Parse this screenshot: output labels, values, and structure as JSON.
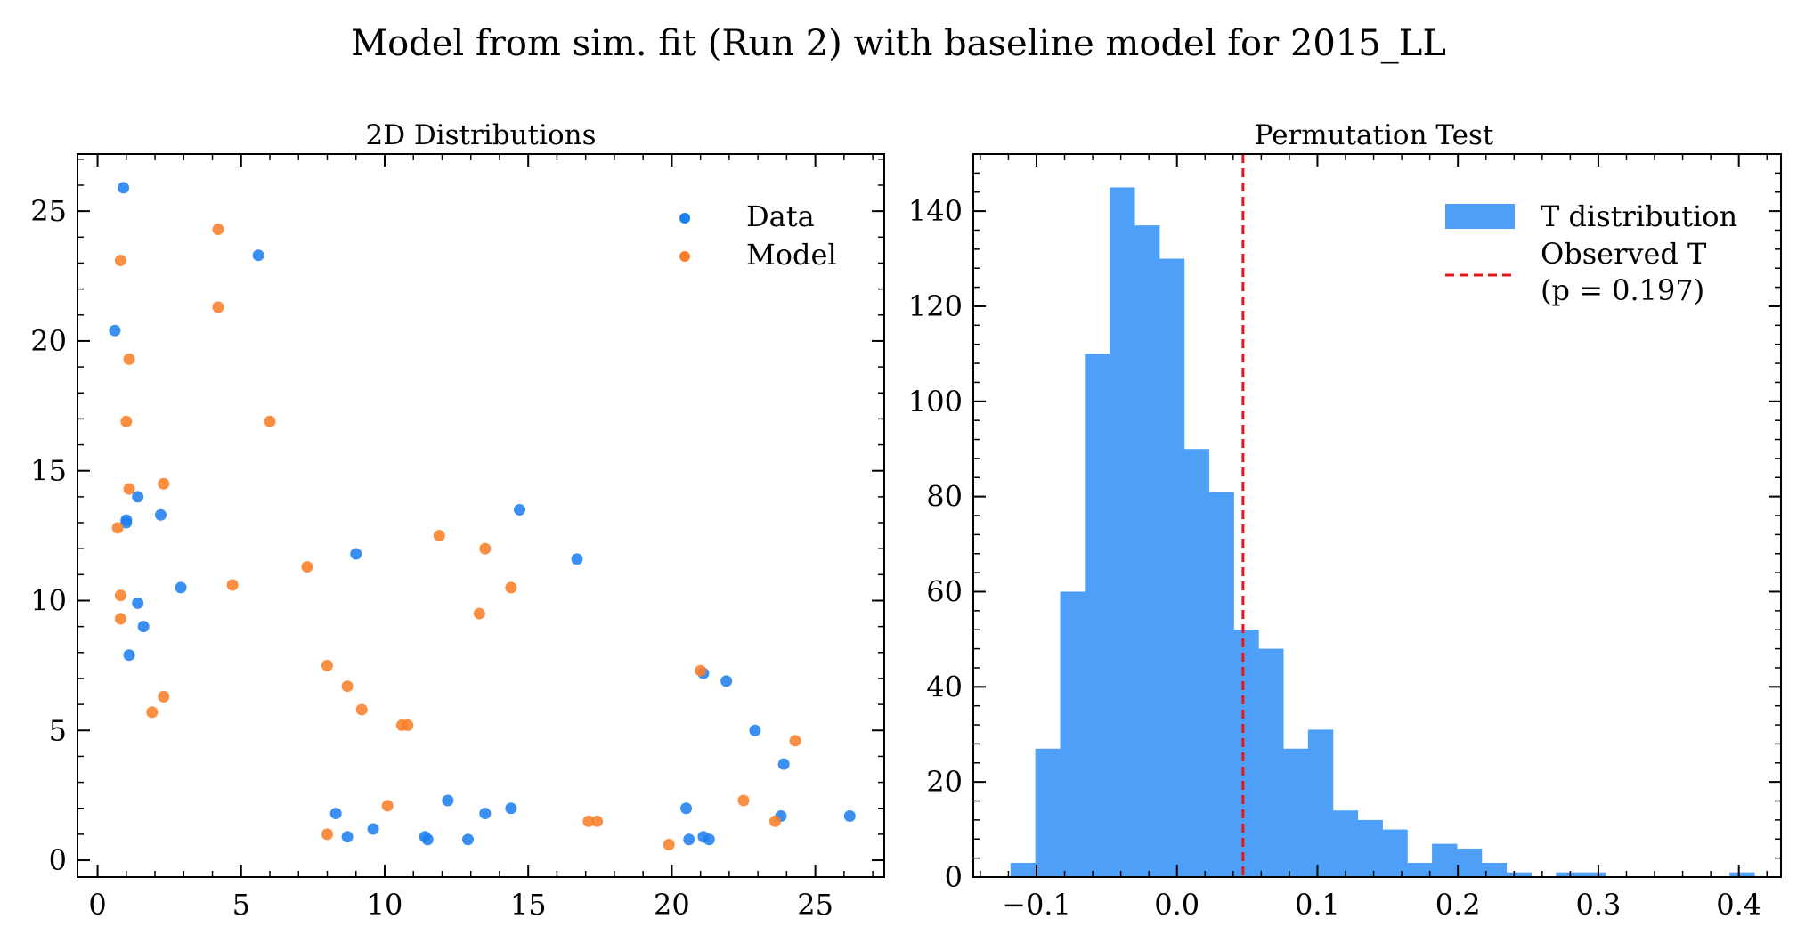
{
  "figure_title": "Model from sim. fit (Run 2) with baseline model for 2015_LL",
  "colors": {
    "data": "#1f7fef",
    "model": "#f97f2a",
    "hist": "#4e9ff8",
    "observed": "#e8141a"
  },
  "chart_data": [
    {
      "type": "scatter",
      "title": "2D Distributions",
      "xlabel": "",
      "ylabel": "",
      "xlim": [
        -0.7,
        27.4
      ],
      "ylim": [
        -0.65,
        27.2
      ],
      "xticks": [
        0,
        5,
        10,
        15,
        20,
        25
      ],
      "yticks": [
        0,
        5,
        10,
        15,
        20,
        25
      ],
      "grid": false,
      "legend_position": "top-right",
      "series": [
        {
          "name": "Data",
          "points": [
            [
              0.9,
              25.9
            ],
            [
              5.6,
              23.3
            ],
            [
              0.6,
              20.4
            ],
            [
              1.4,
              14.0
            ],
            [
              1.0,
              13.1
            ],
            [
              1.0,
              13.0
            ],
            [
              2.2,
              13.3
            ],
            [
              1.4,
              9.9
            ],
            [
              1.6,
              9.0
            ],
            [
              2.9,
              10.5
            ],
            [
              1.1,
              7.9
            ],
            [
              9.0,
              11.8
            ],
            [
              14.7,
              13.5
            ],
            [
              16.7,
              11.6
            ],
            [
              21.1,
              7.2
            ],
            [
              21.9,
              6.9
            ],
            [
              22.9,
              5.0
            ],
            [
              23.9,
              3.7
            ],
            [
              23.8,
              1.7
            ],
            [
              26.2,
              1.7
            ],
            [
              20.5,
              2.0
            ],
            [
              20.6,
              0.8
            ],
            [
              21.1,
              0.9
            ],
            [
              21.3,
              0.8
            ],
            [
              8.3,
              1.8
            ],
            [
              8.7,
              0.9
            ],
            [
              9.6,
              1.2
            ],
            [
              11.4,
              0.9
            ],
            [
              11.5,
              0.8
            ],
            [
              12.2,
              2.3
            ],
            [
              12.9,
              0.8
            ],
            [
              13.5,
              1.8
            ],
            [
              14.4,
              2.0
            ]
          ]
        },
        {
          "name": "Model",
          "points": [
            [
              4.2,
              24.3
            ],
            [
              0.8,
              23.1
            ],
            [
              4.2,
              21.3
            ],
            [
              1.1,
              19.3
            ],
            [
              1.0,
              16.9
            ],
            [
              6.0,
              16.9
            ],
            [
              1.1,
              14.3
            ],
            [
              2.3,
              14.5
            ],
            [
              0.7,
              12.8
            ],
            [
              0.8,
              10.2
            ],
            [
              0.8,
              9.3
            ],
            [
              4.7,
              10.6
            ],
            [
              7.3,
              11.3
            ],
            [
              11.9,
              12.5
            ],
            [
              13.5,
              12.0
            ],
            [
              14.4,
              10.5
            ],
            [
              13.3,
              9.5
            ],
            [
              1.9,
              5.7
            ],
            [
              2.3,
              6.3
            ],
            [
              8.0,
              7.5
            ],
            [
              8.7,
              6.7
            ],
            [
              9.2,
              5.8
            ],
            [
              10.6,
              5.2
            ],
            [
              10.8,
              5.2
            ],
            [
              8.0,
              1.0
            ],
            [
              10.1,
              2.1
            ],
            [
              17.1,
              1.5
            ],
            [
              17.4,
              1.5
            ],
            [
              19.9,
              0.6
            ],
            [
              21.0,
              7.3
            ],
            [
              22.5,
              2.3
            ],
            [
              23.6,
              1.5
            ],
            [
              24.3,
              4.6
            ]
          ]
        }
      ]
    },
    {
      "type": "bar",
      "title": "Permutation Test",
      "xlabel": "",
      "ylabel": "",
      "xlim": [
        -0.145,
        0.43
      ],
      "ylim": [
        0,
        152
      ],
      "xticks": [
        -0.1,
        0.0,
        0.1,
        0.2,
        0.3,
        0.4
      ],
      "xtick_labels": [
        "−0.1",
        "0.0",
        "0.1",
        "0.2",
        "0.3",
        "0.4"
      ],
      "yticks": [
        0,
        20,
        40,
        60,
        80,
        100,
        120,
        140
      ],
      "grid": false,
      "legend_position": "top-right",
      "series": [
        {
          "name": "T distribution",
          "bin_start": -0.1185,
          "bin_width": 0.01765,
          "counts": [
            3,
            27,
            60,
            110,
            145,
            137,
            130,
            90,
            81,
            52,
            48,
            27,
            31,
            14,
            12,
            10,
            3,
            7,
            6,
            3,
            1,
            0,
            1,
            1,
            0,
            0,
            0,
            0,
            0,
            1
          ]
        }
      ],
      "observed": {
        "name": "Observed T",
        "value": 0.047,
        "p_label": "(p = 0.197)"
      }
    }
  ]
}
